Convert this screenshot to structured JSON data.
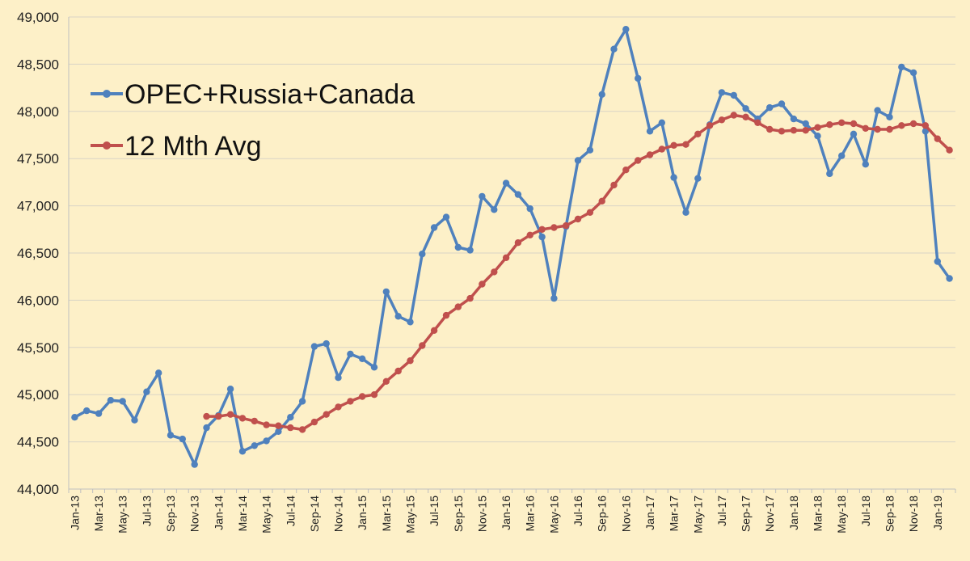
{
  "chart_data": {
    "type": "line",
    "title": "",
    "xlabel": "",
    "ylabel": "",
    "ylim": [
      44000,
      49000
    ],
    "yticks": [
      44000,
      44500,
      45000,
      45500,
      46000,
      46500,
      47000,
      47500,
      48000,
      48500,
      49000
    ],
    "ytick_labels": [
      "44,000",
      "44,500",
      "45,000",
      "45,500",
      "46,000",
      "46,500",
      "47,000",
      "47,500",
      "48,000",
      "48,500",
      "49,000"
    ],
    "grid": true,
    "legend_position": "top-left",
    "colors": {
      "background": "#fdf0c8",
      "series1": "#4f81bd",
      "series2": "#c0504d"
    },
    "x": [
      "Jan-13",
      "Feb-13",
      "Mar-13",
      "Apr-13",
      "May-13",
      "Jun-13",
      "Jul-13",
      "Aug-13",
      "Sep-13",
      "Oct-13",
      "Nov-13",
      "Dec-13",
      "Jan-14",
      "Feb-14",
      "Mar-14",
      "Apr-14",
      "May-14",
      "Jun-14",
      "Jul-14",
      "Aug-14",
      "Sep-14",
      "Oct-14",
      "Nov-14",
      "Dec-14",
      "Jan-15",
      "Feb-15",
      "Mar-15",
      "Apr-15",
      "May-15",
      "Jun-15",
      "Jul-15",
      "Aug-15",
      "Sep-15",
      "Oct-15",
      "Nov-15",
      "Dec-15",
      "Jan-16",
      "Feb-16",
      "Mar-16",
      "Apr-16",
      "May-16",
      "Jun-16",
      "Jul-16",
      "Aug-16",
      "Sep-16",
      "Oct-16",
      "Nov-16",
      "Dec-16",
      "Jan-17",
      "Feb-17",
      "Mar-17",
      "Apr-17",
      "May-17",
      "Jun-17",
      "Jul-17",
      "Aug-17",
      "Sep-17",
      "Oct-17",
      "Nov-17",
      "Dec-17",
      "Jan-18",
      "Feb-18",
      "Mar-18",
      "Apr-18",
      "May-18",
      "Jun-18",
      "Jul-18",
      "Aug-18",
      "Sep-18",
      "Oct-18",
      "Nov-18",
      "Dec-18",
      "Jan-19",
      "Feb-19"
    ],
    "x_tick_labels_shown": [
      "Jan-13",
      "Mar-13",
      "May-13",
      "Jul-13",
      "Sep-13",
      "Nov-13",
      "Jan-14",
      "Mar-14",
      "May-14",
      "Jul-14",
      "Sep-14",
      "Nov-14",
      "Jan-15",
      "Mar-15",
      "May-15",
      "Jul-15",
      "Sep-15",
      "Nov-15",
      "Jan-16",
      "Mar-16",
      "May-16",
      "Jul-16",
      "Sep-16",
      "Nov-16",
      "Jan-17",
      "Mar-17",
      "May-17",
      "Jul-17",
      "Sep-17",
      "Nov-17",
      "Jan-18",
      "Mar-18",
      "May-18",
      "Jul-18",
      "Sep-18",
      "Nov-18",
      "Jan-19"
    ],
    "series": [
      {
        "name": "OPEC+Russia+Canada",
        "values": [
          44760,
          44830,
          44800,
          44940,
          44930,
          44730,
          45030,
          45230,
          44570,
          44530,
          44260,
          44650,
          44780,
          45060,
          44400,
          44460,
          44510,
          44610,
          44760,
          44930,
          45510,
          45540,
          45180,
          45430,
          45380,
          45290,
          46090,
          45830,
          45770,
          46490,
          46770,
          46880,
          46560,
          46530,
          47100,
          46960,
          47240,
          47120,
          46970,
          46670,
          46020,
          46780,
          47480,
          47590,
          48180,
          48660,
          48870,
          48350,
          47790,
          47880,
          47300,
          46930,
          47290,
          47860,
          48200,
          48170,
          48030,
          47920,
          48040,
          48080,
          47920,
          47870,
          47740,
          47340,
          47530,
          47760,
          47440,
          48010,
          47940,
          48470,
          48410,
          47790,
          46410,
          46230
        ]
      },
      {
        "name": "12 Mth Avg",
        "values": [
          null,
          null,
          null,
          null,
          null,
          null,
          null,
          null,
          null,
          null,
          null,
          44770,
          44770,
          44790,
          44750,
          44720,
          44680,
          44670,
          44650,
          44630,
          44710,
          44790,
          44870,
          44930,
          44980,
          45000,
          45140,
          45250,
          45360,
          45520,
          45680,
          45840,
          45930,
          46020,
          46170,
          46300,
          46450,
          46610,
          46690,
          46750,
          46770,
          46790,
          46860,
          46930,
          47050,
          47220,
          47380,
          47480,
          47540,
          47600,
          47640,
          47650,
          47760,
          47850,
          47910,
          47960,
          47940,
          47880,
          47810,
          47790,
          47800,
          47800,
          47830,
          47860,
          47880,
          47870,
          47820,
          47810,
          47810,
          47850,
          47870,
          47850,
          47710,
          47590
        ]
      }
    ]
  }
}
